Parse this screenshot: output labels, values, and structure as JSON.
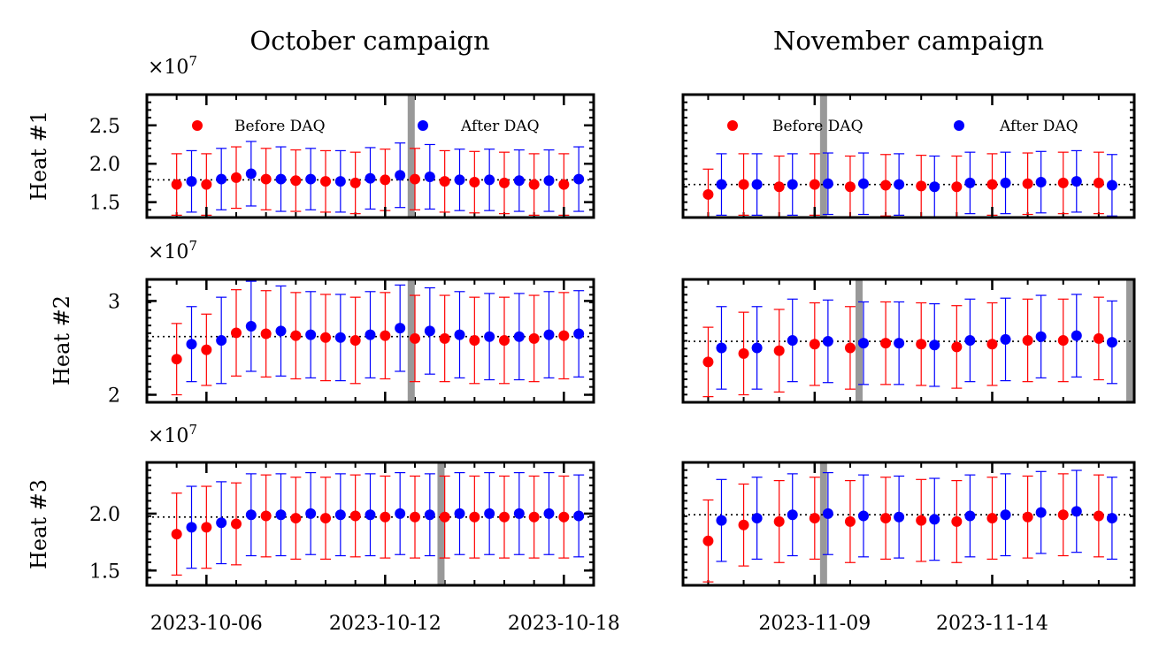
{
  "titles": [
    "October campaign",
    "November campaign"
  ],
  "row_labels": [
    "Heat #1",
    "Heat #2",
    "Heat #3"
  ],
  "scale_label": "×10",
  "scale_exp": "7",
  "legend": {
    "before": "Before DAQ",
    "after": "After DAQ"
  },
  "colors": {
    "before": "#ff0000",
    "after": "#0000ff",
    "marker_line": "#999999",
    "axis": "#000000"
  },
  "chart_data": [
    {
      "type": "scatter",
      "panel": "Heat #1 / October campaign",
      "xlim": [
        "2023-10-04",
        "2023-10-19"
      ],
      "ylim": [
        1.3,
        2.9
      ],
      "scale": "1e7",
      "yticks": [
        1.5,
        2.0,
        2.5
      ],
      "ytick_labels": [
        "1.5",
        "2.0",
        "2.5"
      ],
      "xticks": [
        "2023-10-06",
        "2023-10-12",
        "2023-10-18"
      ],
      "reference_line": 1.79,
      "marker_lines": [
        "2023-10-12T21:00"
      ],
      "legend": "top",
      "grid": false,
      "series": [
        {
          "name": "Before DAQ",
          "x": [
            "2023-10-05",
            "2023-10-06",
            "2023-10-07",
            "2023-10-08",
            "2023-10-09",
            "2023-10-10",
            "2023-10-11",
            "2023-10-12",
            "2023-10-13",
            "2023-10-14",
            "2023-10-15",
            "2023-10-16",
            "2023-10-17",
            "2023-10-18"
          ],
          "y": [
            1.73,
            1.73,
            1.82,
            1.8,
            1.78,
            1.77,
            1.75,
            1.79,
            1.8,
            1.77,
            1.76,
            1.75,
            1.73,
            1.73
          ],
          "err": [
            0.4,
            0.4,
            0.4,
            0.4,
            0.4,
            0.4,
            0.4,
            0.4,
            0.4,
            0.4,
            0.4,
            0.4,
            0.4,
            0.4
          ]
        },
        {
          "name": "After DAQ",
          "x": [
            "2023-10-05T12:00",
            "2023-10-06T12:00",
            "2023-10-07T12:00",
            "2023-10-08T12:00",
            "2023-10-09T12:00",
            "2023-10-10T12:00",
            "2023-10-11T12:00",
            "2023-10-12T12:00",
            "2023-10-13T12:00",
            "2023-10-14T12:00",
            "2023-10-15T12:00",
            "2023-10-16T12:00",
            "2023-10-17T12:00",
            "2023-10-18T12:00"
          ],
          "y": [
            1.77,
            1.8,
            1.87,
            1.8,
            1.8,
            1.77,
            1.81,
            1.85,
            1.83,
            1.79,
            1.79,
            1.78,
            1.78,
            1.8
          ],
          "err": [
            0.4,
            0.4,
            0.42,
            0.42,
            0.4,
            0.4,
            0.4,
            0.42,
            0.42,
            0.4,
            0.4,
            0.4,
            0.4,
            0.42
          ]
        }
      ]
    },
    {
      "type": "scatter",
      "panel": "Heat #1 / November campaign",
      "xlim": [
        "2023-11-05T07:00",
        "2023-11-18"
      ],
      "ylim": [
        1.3,
        2.9
      ],
      "scale": "1e7",
      "yticks": [],
      "ytick_labels": [],
      "xticks": [
        "2023-11-09",
        "2023-11-14"
      ],
      "reference_line": 1.73,
      "marker_lines": [
        "2023-11-09T06:00"
      ],
      "legend": "top",
      "grid": false,
      "series": [
        {
          "name": "Before DAQ",
          "x": [
            "2023-11-06",
            "2023-11-07",
            "2023-11-08",
            "2023-11-09",
            "2023-11-10",
            "2023-11-11",
            "2023-11-12",
            "2023-11-13",
            "2023-11-14",
            "2023-11-15",
            "2023-11-16",
            "2023-11-17"
          ],
          "y": [
            1.6,
            1.73,
            1.7,
            1.73,
            1.7,
            1.72,
            1.71,
            1.7,
            1.73,
            1.74,
            1.75,
            1.75
          ],
          "err": [
            0.33,
            0.4,
            0.4,
            0.4,
            0.4,
            0.4,
            0.4,
            0.4,
            0.4,
            0.4,
            0.4,
            0.4
          ]
        },
        {
          "name": "After DAQ",
          "x": [
            "2023-11-06T09:00",
            "2023-11-07T09:00",
            "2023-11-08T09:00",
            "2023-11-09T09:00",
            "2023-11-10T09:00",
            "2023-11-11T09:00",
            "2023-11-12T09:00",
            "2023-11-13T09:00",
            "2023-11-14T09:00",
            "2023-11-15T09:00",
            "2023-11-16T09:00",
            "2023-11-17T09:00"
          ],
          "y": [
            1.73,
            1.73,
            1.73,
            1.74,
            1.74,
            1.73,
            1.7,
            1.75,
            1.75,
            1.76,
            1.77,
            1.72
          ],
          "err": [
            0.4,
            0.4,
            0.4,
            0.4,
            0.4,
            0.4,
            0.4,
            0.4,
            0.4,
            0.4,
            0.4,
            0.4
          ]
        }
      ]
    },
    {
      "type": "scatter",
      "panel": "Heat #2 / October campaign",
      "xlim": [
        "2023-10-04",
        "2023-10-19"
      ],
      "ylim": [
        1.92,
        3.23
      ],
      "scale": "1e7",
      "yticks": [
        2,
        3
      ],
      "ytick_labels": [
        "2",
        "3"
      ],
      "xticks": [
        "2023-10-06",
        "2023-10-12",
        "2023-10-18"
      ],
      "reference_line": 2.62,
      "marker_lines": [
        "2023-10-12T21:00"
      ],
      "grid": false,
      "series": [
        {
          "name": "Before DAQ",
          "x": [
            "2023-10-05",
            "2023-10-06",
            "2023-10-07",
            "2023-10-08",
            "2023-10-09",
            "2023-10-10",
            "2023-10-11",
            "2023-10-12",
            "2023-10-13",
            "2023-10-14",
            "2023-10-15",
            "2023-10-16",
            "2023-10-17",
            "2023-10-18"
          ],
          "y": [
            2.38,
            2.48,
            2.66,
            2.65,
            2.63,
            2.61,
            2.58,
            2.63,
            2.6,
            2.6,
            2.58,
            2.58,
            2.6,
            2.63
          ],
          "err": [
            0.38,
            0.38,
            0.46,
            0.46,
            0.46,
            0.46,
            0.46,
            0.46,
            0.46,
            0.46,
            0.46,
            0.46,
            0.46,
            0.46
          ]
        },
        {
          "name": "After DAQ",
          "x": [
            "2023-10-05T12:00",
            "2023-10-06T12:00",
            "2023-10-07T12:00",
            "2023-10-08T12:00",
            "2023-10-09T12:00",
            "2023-10-10T12:00",
            "2023-10-11T12:00",
            "2023-10-12T12:00",
            "2023-10-13T12:00",
            "2023-10-14T12:00",
            "2023-10-15T12:00",
            "2023-10-16T12:00",
            "2023-10-17T12:00",
            "2023-10-18T12:00"
          ],
          "y": [
            2.54,
            2.58,
            2.73,
            2.68,
            2.64,
            2.61,
            2.64,
            2.71,
            2.68,
            2.64,
            2.62,
            2.62,
            2.64,
            2.65
          ],
          "err": [
            0.4,
            0.46,
            0.48,
            0.48,
            0.46,
            0.46,
            0.46,
            0.46,
            0.46,
            0.46,
            0.46,
            0.46,
            0.46,
            0.46
          ]
        }
      ]
    },
    {
      "type": "scatter",
      "panel": "Heat #2 / November campaign",
      "xlim": [
        "2023-11-05T07:00",
        "2023-11-18"
      ],
      "ylim": [
        1.92,
        3.23
      ],
      "scale": "1e7",
      "yticks": [],
      "ytick_labels": [],
      "xticks": [
        "2023-11-09",
        "2023-11-14"
      ],
      "reference_line": 2.57,
      "marker_lines": [
        "2023-11-10T06:00",
        "2023-11-17T21:00"
      ],
      "grid": false,
      "series": [
        {
          "name": "Before DAQ",
          "x": [
            "2023-11-06",
            "2023-11-07",
            "2023-11-08",
            "2023-11-09",
            "2023-11-10",
            "2023-11-11",
            "2023-11-12",
            "2023-11-13",
            "2023-11-14",
            "2023-11-15",
            "2023-11-16",
            "2023-11-17"
          ],
          "y": [
            2.35,
            2.44,
            2.47,
            2.54,
            2.5,
            2.55,
            2.54,
            2.51,
            2.54,
            2.58,
            2.58,
            2.6
          ],
          "err": [
            0.37,
            0.44,
            0.44,
            0.44,
            0.44,
            0.44,
            0.44,
            0.44,
            0.44,
            0.44,
            0.44,
            0.44
          ]
        },
        {
          "name": "After DAQ",
          "x": [
            "2023-11-06T09:00",
            "2023-11-07T09:00",
            "2023-11-08T09:00",
            "2023-11-09T09:00",
            "2023-11-10T09:00",
            "2023-11-11T09:00",
            "2023-11-12T09:00",
            "2023-11-13T09:00",
            "2023-11-14T09:00",
            "2023-11-15T09:00",
            "2023-11-16T09:00",
            "2023-11-17T09:00"
          ],
          "y": [
            2.5,
            2.5,
            2.58,
            2.57,
            2.55,
            2.55,
            2.53,
            2.58,
            2.59,
            2.62,
            2.63,
            2.56
          ],
          "err": [
            0.44,
            0.44,
            0.44,
            0.44,
            0.44,
            0.44,
            0.44,
            0.44,
            0.44,
            0.44,
            0.44,
            0.44
          ]
        }
      ]
    },
    {
      "type": "scatter",
      "panel": "Heat #3 / October campaign",
      "xlim": [
        "2023-10-04",
        "2023-10-19"
      ],
      "ylim": [
        1.37,
        2.45
      ],
      "scale": "1e7",
      "yticks": [
        1.5,
        2.0
      ],
      "ytick_labels": [
        "1.5",
        "2.0"
      ],
      "xticks": [
        "2023-10-06",
        "2023-10-12",
        "2023-10-18"
      ],
      "reference_line": 1.97,
      "marker_lines": [
        "2023-10-13T21:00"
      ],
      "grid": false,
      "series": [
        {
          "name": "Before DAQ",
          "x": [
            "2023-10-05",
            "2023-10-06",
            "2023-10-07",
            "2023-10-08",
            "2023-10-09",
            "2023-10-10",
            "2023-10-11",
            "2023-10-12",
            "2023-10-13",
            "2023-10-14",
            "2023-10-15",
            "2023-10-16",
            "2023-10-17",
            "2023-10-18"
          ],
          "y": [
            1.82,
            1.88,
            1.91,
            1.98,
            1.96,
            1.96,
            1.98,
            1.97,
            1.97,
            1.97,
            1.97,
            1.97,
            1.97,
            1.97
          ],
          "err": [
            0.36,
            0.36,
            0.36,
            0.36,
            0.36,
            0.36,
            0.36,
            0.36,
            0.36,
            0.36,
            0.36,
            0.36,
            0.36,
            0.36
          ]
        },
        {
          "name": "After DAQ",
          "x": [
            "2023-10-05T12:00",
            "2023-10-06T12:00",
            "2023-10-07T12:00",
            "2023-10-08T12:00",
            "2023-10-09T12:00",
            "2023-10-10T12:00",
            "2023-10-11T12:00",
            "2023-10-12T12:00",
            "2023-10-13T12:00",
            "2023-10-14T12:00",
            "2023-10-15T12:00",
            "2023-10-16T12:00",
            "2023-10-17T12:00",
            "2023-10-18T12:00"
          ],
          "y": [
            1.88,
            1.92,
            1.99,
            1.99,
            2.0,
            1.99,
            1.99,
            2.0,
            1.99,
            2.0,
            2.0,
            2.0,
            2.0,
            1.98
          ],
          "err": [
            0.36,
            0.36,
            0.36,
            0.36,
            0.36,
            0.36,
            0.36,
            0.36,
            0.36,
            0.36,
            0.36,
            0.36,
            0.36,
            0.36
          ]
        }
      ]
    },
    {
      "type": "scatter",
      "panel": "Heat #3 / November campaign",
      "xlim": [
        "2023-11-05T07:00",
        "2023-11-18"
      ],
      "ylim": [
        1.37,
        2.45
      ],
      "scale": "1e7",
      "yticks": [],
      "ytick_labels": [],
      "xticks": [
        "2023-11-09",
        "2023-11-14"
      ],
      "reference_line": 1.99,
      "marker_lines": [
        "2023-11-09T06:00"
      ],
      "grid": false,
      "series": [
        {
          "name": "Before DAQ",
          "x": [
            "2023-11-06",
            "2023-11-07",
            "2023-11-08",
            "2023-11-09",
            "2023-11-10",
            "2023-11-11",
            "2023-11-12",
            "2023-11-13",
            "2023-11-14",
            "2023-11-15",
            "2023-11-16",
            "2023-11-17"
          ],
          "y": [
            1.76,
            1.9,
            1.93,
            1.96,
            1.93,
            1.96,
            1.94,
            1.93,
            1.96,
            1.97,
            1.99,
            1.98
          ],
          "err": [
            0.36,
            0.36,
            0.36,
            0.36,
            0.36,
            0.36,
            0.36,
            0.36,
            0.36,
            0.36,
            0.36,
            0.36
          ]
        },
        {
          "name": "After DAQ",
          "x": [
            "2023-11-06T09:00",
            "2023-11-07T09:00",
            "2023-11-08T09:00",
            "2023-11-09T09:00",
            "2023-11-10T09:00",
            "2023-11-11T09:00",
            "2023-11-12T09:00",
            "2023-11-13T09:00",
            "2023-11-14T09:00",
            "2023-11-15T09:00",
            "2023-11-16T09:00",
            "2023-11-17T09:00"
          ],
          "y": [
            1.94,
            1.96,
            1.99,
            2.0,
            1.98,
            1.97,
            1.95,
            1.98,
            1.99,
            2.01,
            2.02,
            1.96
          ],
          "err": [
            0.36,
            0.36,
            0.36,
            0.36,
            0.36,
            0.36,
            0.36,
            0.36,
            0.36,
            0.36,
            0.36,
            0.36
          ]
        }
      ]
    }
  ]
}
